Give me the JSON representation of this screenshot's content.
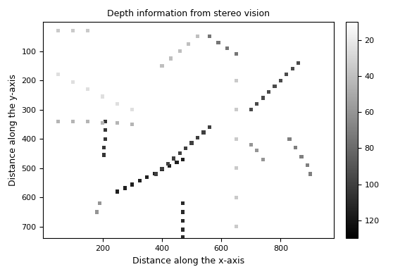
{
  "chart_data": {
    "type": "scatter",
    "title": "Depth information from stereo vision",
    "x_label": "Distance along the x-axis",
    "y_label": "Distance along the y-axis",
    "marker": "s",
    "x": [
      250,
      275,
      300,
      325,
      350,
      375,
      400,
      425,
      450,
      470,
      380,
      400,
      420,
      440,
      460,
      480,
      500,
      520,
      540,
      560,
      700,
      720,
      740,
      760,
      780,
      800,
      820,
      840,
      860,
      210,
      210,
      210,
      205,
      205,
      470,
      470,
      470,
      470,
      470,
      560,
      590,
      620,
      650,
      400,
      430,
      460,
      490,
      520,
      50,
      100,
      150,
      200,
      250,
      300,
      50,
      100,
      150,
      200,
      250,
      300,
      830,
      850,
      870,
      890,
      900,
      650,
      650,
      650,
      650,
      650,
      650,
      700,
      720,
      740,
      180,
      190,
      50,
      100,
      150
    ],
    "y": [
      580,
      568,
      556,
      543,
      530,
      518,
      505,
      493,
      480,
      470,
      520,
      502,
      485,
      467,
      449,
      431,
      414,
      396,
      378,
      360,
      300,
      280,
      260,
      240,
      220,
      200,
      180,
      160,
      140,
      340,
      370,
      400,
      430,
      455,
      620,
      650,
      680,
      710,
      735,
      50,
      70,
      90,
      110,
      150,
      125,
      100,
      75,
      50,
      340,
      340,
      340,
      345,
      345,
      350,
      180,
      205,
      230,
      255,
      280,
      300,
      400,
      430,
      460,
      490,
      520,
      200,
      300,
      400,
      500,
      600,
      700,
      420,
      440,
      470,
      650,
      620,
      30,
      30,
      30
    ],
    "values": [
      115,
      115,
      115,
      115,
      115,
      115,
      115,
      115,
      115,
      115,
      100,
      100,
      100,
      100,
      100,
      100,
      100,
      100,
      100,
      100,
      95,
      95,
      95,
      95,
      95,
      95,
      95,
      95,
      95,
      105,
      105,
      105,
      105,
      105,
      110,
      110,
      110,
      110,
      110,
      75,
      75,
      75,
      75,
      40,
      40,
      40,
      40,
      40,
      45,
      45,
      45,
      45,
      45,
      45,
      25,
      25,
      25,
      25,
      25,
      25,
      70,
      70,
      70,
      70,
      70,
      35,
      35,
      35,
      35,
      35,
      35,
      60,
      60,
      60,
      60,
      60,
      35,
      35,
      35
    ],
    "xlim": [
      0,
      980
    ],
    "ylim": [
      740,
      0
    ],
    "xticks": [
      200,
      400,
      600,
      800
    ],
    "yticks": [
      100,
      200,
      300,
      400,
      500,
      600,
      700
    ],
    "color_range": [
      10,
      130
    ],
    "color_ticks": [
      20,
      40,
      60,
      80,
      100,
      120
    ]
  }
}
